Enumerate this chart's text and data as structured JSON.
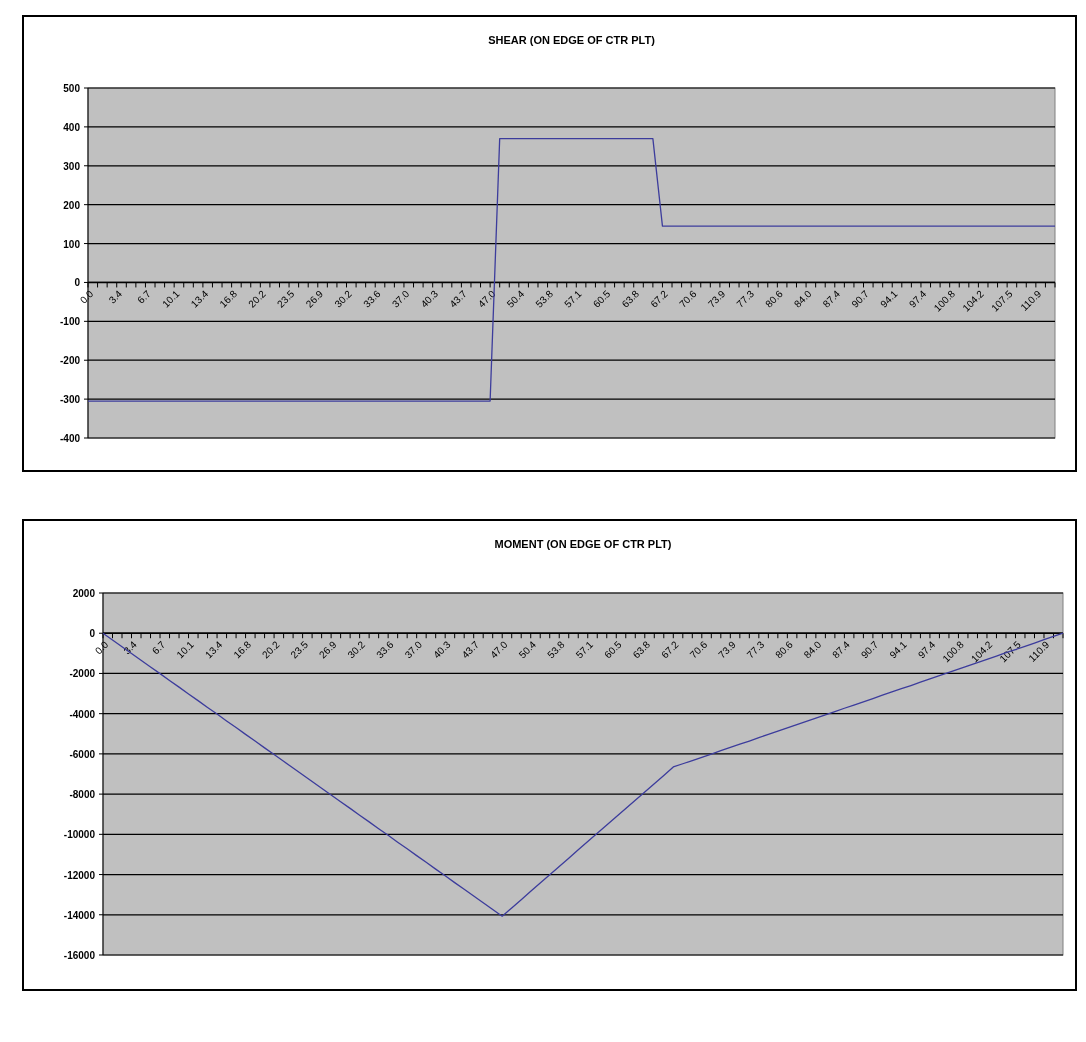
{
  "chart_data": [
    {
      "type": "line",
      "title": "SHEAR (ON EDGE OF CTR PLT)",
      "categories": [
        "0.0",
        null,
        null,
        "3.4",
        null,
        null,
        "6.7",
        null,
        null,
        "10.1",
        null,
        null,
        "13.4",
        null,
        null,
        "16.8",
        null,
        null,
        "20.2",
        null,
        null,
        "23.5",
        null,
        null,
        "26.9",
        null,
        null,
        "30.2",
        null,
        null,
        "33.6",
        null,
        null,
        "37.0",
        null,
        null,
        "40.3",
        null,
        null,
        "43.7",
        null,
        null,
        "47.0",
        null,
        null,
        "50.4",
        null,
        null,
        "53.8",
        null,
        null,
        "57.1",
        null,
        null,
        "60.5",
        null,
        null,
        "63.8",
        null,
        null,
        "67.2",
        null,
        null,
        "70.6",
        null,
        null,
        "73.9",
        null,
        null,
        "77.3",
        null,
        null,
        "80.6",
        null,
        null,
        "84.0",
        null,
        null,
        "87.4",
        null,
        null,
        "90.7",
        null,
        null,
        "94.1",
        null,
        null,
        "97.4",
        null,
        null,
        "100.8",
        null,
        null,
        "104.2",
        null,
        null,
        "107.5",
        null,
        null,
        "110.9",
        null,
        null
      ],
      "series": [
        {
          "color": "#3c3c9c",
          "values": [
            -305,
            -305,
            -305,
            -305,
            -305,
            -305,
            -305,
            -305,
            -305,
            -305,
            -305,
            -305,
            -305,
            -305,
            -305,
            -305,
            -305,
            -305,
            -305,
            -305,
            -305,
            -305,
            -305,
            -305,
            -305,
            -305,
            -305,
            -305,
            -305,
            -305,
            -305,
            -305,
            -305,
            -305,
            -305,
            -305,
            -305,
            -305,
            -305,
            -305,
            -305,
            -305,
            -305,
            370,
            370,
            370,
            370,
            370,
            370,
            370,
            370,
            370,
            370,
            370,
            370,
            370,
            370,
            370,
            370,
            370,
            145,
            145,
            145,
            145,
            145,
            145,
            145,
            145,
            145,
            145,
            145,
            145,
            145,
            145,
            145,
            145,
            145,
            145,
            145,
            145,
            145,
            145,
            145,
            145,
            145,
            145,
            145,
            145,
            145,
            145,
            145,
            145,
            145,
            145,
            145,
            145,
            145,
            145,
            145,
            145,
            145,
            145
          ]
        }
      ],
      "ylim": [
        -400,
        500
      ],
      "yticks": [
        -400,
        -300,
        -200,
        -100,
        0,
        100,
        200,
        300,
        400,
        500
      ],
      "grid": "y"
    },
    {
      "type": "line",
      "title": "MOMENT (ON EDGE OF CTR PLT)",
      "categories": [
        "0.0",
        null,
        null,
        "3.4",
        null,
        null,
        "6.7",
        null,
        null,
        "10.1",
        null,
        null,
        "13.4",
        null,
        null,
        "16.8",
        null,
        null,
        "20.2",
        null,
        null,
        "23.5",
        null,
        null,
        "26.9",
        null,
        null,
        "30.2",
        null,
        null,
        "33.6",
        null,
        null,
        "37.0",
        null,
        null,
        "40.3",
        null,
        null,
        "43.7",
        null,
        null,
        "47.0",
        null,
        null,
        "50.4",
        null,
        null,
        "53.8",
        null,
        null,
        "57.1",
        null,
        null,
        "60.5",
        null,
        null,
        "63.8",
        null,
        null,
        "67.2",
        null,
        null,
        "70.6",
        null,
        null,
        "73.9",
        null,
        null,
        "77.3",
        null,
        null,
        "80.6",
        null,
        null,
        "84.0",
        null,
        null,
        "87.4",
        null,
        null,
        "90.7",
        null,
        null,
        "94.1",
        null,
        null,
        "97.4",
        null,
        null,
        "100.8",
        null,
        null,
        "104.2",
        null,
        null,
        "107.5",
        null,
        null,
        "110.9",
        null,
        null
      ],
      "series": [
        {
          "color": "#3c3c9c",
          "values": [
            0,
            -340,
            -670,
            -1010,
            -1340,
            -1680,
            -2010,
            -2350,
            -2680,
            -3020,
            -3350,
            -3690,
            -4020,
            -4360,
            -4690,
            -5030,
            -5360,
            -5700,
            -6030,
            -6370,
            -6700,
            -7040,
            -7370,
            -7710,
            -8040,
            -8380,
            -8710,
            -9050,
            -9380,
            -9720,
            -10050,
            -10390,
            -10720,
            -11060,
            -11390,
            -11730,
            -12060,
            -12400,
            -12730,
            -13070,
            -13400,
            -13740,
            -14070,
            -13660,
            -13250,
            -12830,
            -12420,
            -12010,
            -11600,
            -11190,
            -10770,
            -10360,
            -9950,
            -9540,
            -9130,
            -8710,
            -8300,
            -7890,
            -7480,
            -7070,
            -6650,
            -6490,
            -6330,
            -6170,
            -6010,
            -5840,
            -5680,
            -5520,
            -5360,
            -5190,
            -5030,
            -4870,
            -4710,
            -4540,
            -4380,
            -4220,
            -4060,
            -3900,
            -3730,
            -3570,
            -3410,
            -3250,
            -3080,
            -2920,
            -2760,
            -2600,
            -2430,
            -2270,
            -2110,
            -1950,
            -1790,
            -1620,
            -1460,
            -1300,
            -1140,
            -970,
            -810,
            -650,
            -490,
            -320,
            -160,
            0
          ]
        }
      ],
      "ylim": [
        -16000,
        2000
      ],
      "yticks": [
        -16000,
        -14000,
        -12000,
        -10000,
        -8000,
        -6000,
        -4000,
        -2000,
        0,
        2000
      ],
      "grid": "y"
    }
  ]
}
